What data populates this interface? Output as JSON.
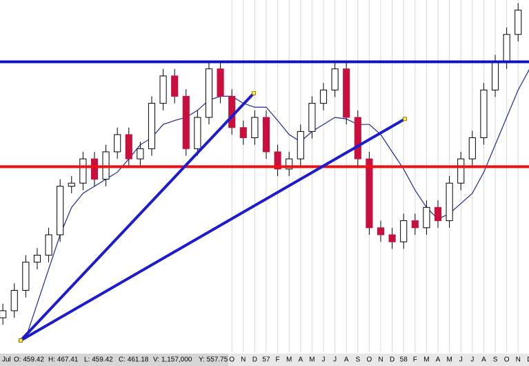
{
  "chart_data": {
    "type": "candlestick",
    "xlim": [
      -5.25,
      40.95
    ],
    "ylim": [
      455,
      500
    ],
    "xticks": [
      {
        "value": 15,
        "label": "O"
      },
      {
        "value": 16,
        "label": "N"
      },
      {
        "value": 17,
        "label": "D"
      },
      {
        "value": 18,
        "label": "57"
      },
      {
        "value": 19,
        "label": "F"
      },
      {
        "value": 20,
        "label": "M"
      },
      {
        "value": 21,
        "label": "A"
      },
      {
        "value": 22,
        "label": "M"
      },
      {
        "value": 23,
        "label": "J"
      },
      {
        "value": 24,
        "label": "J"
      },
      {
        "value": 25,
        "label": "A"
      },
      {
        "value": 26,
        "label": "S"
      },
      {
        "value": 27,
        "label": "O"
      },
      {
        "value": 28,
        "label": "N"
      },
      {
        "value": 29,
        "label": "D"
      },
      {
        "value": 30,
        "label": "58"
      },
      {
        "value": 31,
        "label": "F"
      },
      {
        "value": 32,
        "label": "M"
      },
      {
        "value": 33,
        "label": "A"
      },
      {
        "value": 34,
        "label": "M"
      },
      {
        "value": 35,
        "label": "J"
      },
      {
        "value": 36,
        "label": "J"
      },
      {
        "value": 37,
        "label": "A"
      },
      {
        "value": 38,
        "label": "S"
      },
      {
        "value": 39,
        "label": "O"
      },
      {
        "value": 40,
        "label": "N"
      },
      {
        "value": 41,
        "label": "D"
      }
    ],
    "grid": true,
    "up_color": "#ffffff",
    "down_color": "#c8103e",
    "candles": {
      "x": [
        -5,
        -4,
        -3,
        -2,
        -1,
        0,
        1,
        2,
        3,
        4,
        5,
        6,
        7,
        8,
        9,
        10,
        11,
        12,
        13,
        14,
        15,
        16,
        17,
        18,
        19,
        20,
        21,
        22,
        23,
        24,
        25,
        26,
        27,
        28,
        29,
        30,
        31,
        32,
        33,
        34,
        35,
        36,
        37,
        38,
        39,
        40
      ],
      "open": [
        459.4,
        460.3,
        462.9,
        466.5,
        467.4,
        470.0,
        476.2,
        476.6,
        479.7,
        477.1,
        480.6,
        482.8,
        479.7,
        481.0,
        486.8,
        490.3,
        487.7,
        481.0,
        485.0,
        491.2,
        487.7,
        483.7,
        482.4,
        485.0,
        480.6,
        478.4,
        479.7,
        483.2,
        486.8,
        488.5,
        491.2,
        485.0,
        479.7,
        470.9,
        470.0,
        469.1,
        471.8,
        470.9,
        473.5,
        471.8,
        476.6,
        479.7,
        482.4,
        488.5,
        492.1,
        495.6
      ],
      "high": [
        461.2,
        463.8,
        467.4,
        468.3,
        470.9,
        477.1,
        477.5,
        480.6,
        480.6,
        481.5,
        483.7,
        483.7,
        481.9,
        487.7,
        491.2,
        491.2,
        488.6,
        485.9,
        492.1,
        492.1,
        488.6,
        484.6,
        485.9,
        485.9,
        481.5,
        480.6,
        484.1,
        487.7,
        489.4,
        492.1,
        492.1,
        485.9,
        480.6,
        471.8,
        470.9,
        472.7,
        472.7,
        474.4,
        474.4,
        477.5,
        480.6,
        483.3,
        489.4,
        493.0,
        496.5,
        499.6
      ],
      "low": [
        458.5,
        459.4,
        462.0,
        465.6,
        466.5,
        469.1,
        475.3,
        475.7,
        476.2,
        476.2,
        479.7,
        478.8,
        478.8,
        480.1,
        485.9,
        486.8,
        480.1,
        480.1,
        484.1,
        486.8,
        482.8,
        481.5,
        481.5,
        479.7,
        477.5,
        477.5,
        478.8,
        482.3,
        485.9,
        487.6,
        484.1,
        478.8,
        470.0,
        469.1,
        468.2,
        468.2,
        470.0,
        470.0,
        470.9,
        470.9,
        475.7,
        478.8,
        481.5,
        487.6,
        491.2,
        494.7
      ],
      "close": [
        460.3,
        462.9,
        466.5,
        467.4,
        470.0,
        476.2,
        476.6,
        479.7,
        477.1,
        480.6,
        482.8,
        479.7,
        481.0,
        486.8,
        490.3,
        487.7,
        481.0,
        485.0,
        491.2,
        487.7,
        483.7,
        482.4,
        485.0,
        480.6,
        478.4,
        479.7,
        483.2,
        486.8,
        488.5,
        491.2,
        485.0,
        479.7,
        470.9,
        470.0,
        469.1,
        471.8,
        470.9,
        473.5,
        471.8,
        476.6,
        479.7,
        482.4,
        488.5,
        492.1,
        495.6,
        498.7
      ]
    },
    "moving_average": {
      "color": "#1a2a9c",
      "x": [
        -3,
        -2,
        -1,
        0,
        1,
        2,
        3,
        4,
        5,
        6,
        7,
        8,
        9,
        10,
        11,
        12,
        13,
        14,
        15,
        16,
        17,
        18,
        19,
        20,
        21,
        22,
        23,
        24,
        25,
        26,
        27,
        28,
        29,
        30,
        31,
        32,
        33,
        34,
        35,
        36,
        37,
        38,
        39,
        40,
        41
      ],
      "values": [
        456.8,
        461.2,
        465.6,
        470.0,
        473.5,
        475.3,
        476.2,
        477.1,
        478.0,
        479.7,
        481.5,
        482.4,
        484.1,
        484.6,
        485.0,
        485.9,
        487.2,
        487.7,
        487.7,
        486.8,
        486.3,
        486.3,
        484.6,
        482.8,
        481.9,
        483.2,
        484.1,
        485.0,
        484.8,
        484.1,
        484.1,
        482.8,
        480.6,
        478.4,
        475.7,
        473.5,
        472.0,
        472.7,
        474.0,
        475.3,
        478.0,
        481.5,
        485.0,
        488.5,
        491.2
      ]
    },
    "hlines": [
      {
        "value": 492.1,
        "color": "#1010c0"
      },
      {
        "value": 478.7,
        "color": "#ee1111"
      }
    ],
    "trendlines": [
      {
        "color": "#1c1ccc",
        "x": [
          -3.44,
          16.92
        ],
        "y": [
          456.5,
          488.1
        ]
      },
      {
        "color": "#1c1ccc",
        "x": [
          -3.44,
          30.11
        ],
        "y": [
          456.5,
          484.8
        ]
      }
    ]
  },
  "status_bar": {
    "month": "Jul",
    "open": "O: 459.42",
    "high": "H: 467.41",
    "low": "L: 459.42",
    "close": "C: 461.18",
    "volume": "V: 1,157,000",
    "cursor_y": "Y: 557.75"
  }
}
